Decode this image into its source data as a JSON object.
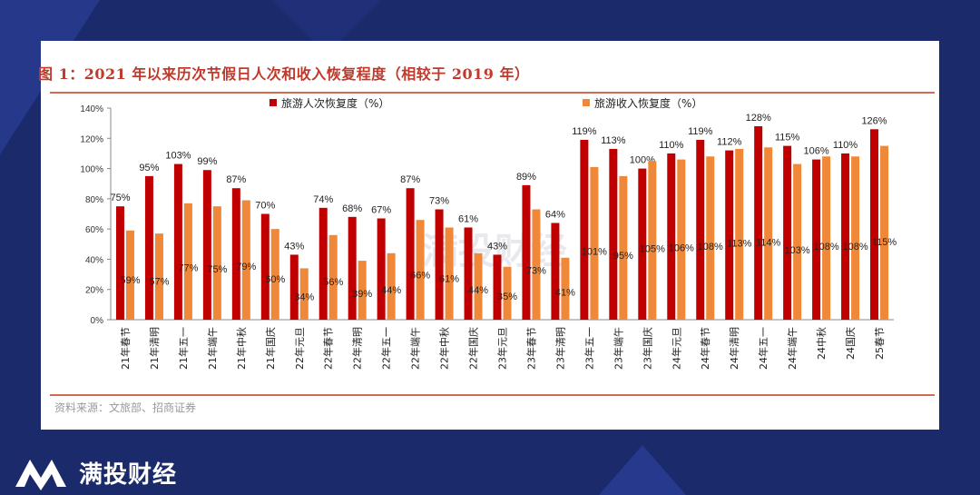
{
  "title": "图 1：2021 年以来历次节假日人次和收入恢复程度（相较于 2019 年）",
  "source": "资料来源：文旅部、招商证券",
  "brand": {
    "name": "满投财经",
    "watermark": "满投财经"
  },
  "colors": {
    "series1": "#c00000",
    "series2": "#f0883a",
    "background": "#1b2a6b",
    "accent": "#c0392b"
  },
  "chart_data": {
    "type": "bar",
    "title": "图 1：2021 年以来历次节假日人次和收入恢复程度（相较于 2019 年）",
    "xlabel": "",
    "ylabel": "",
    "ylim": [
      0,
      140
    ],
    "yticks": [
      "0%",
      "20%",
      "40%",
      "60%",
      "80%",
      "100%",
      "120%",
      "140%"
    ],
    "grid": false,
    "legend_position": "top",
    "categories": [
      "21年春节",
      "21年清明",
      "21年五一",
      "21年端午",
      "21年中秋",
      "21年国庆",
      "22年元旦",
      "22年春节",
      "22年清明",
      "22年五一",
      "22年端午",
      "22年中秋",
      "22年国庆",
      "23年元旦",
      "23年春节",
      "23年清明",
      "23年五一",
      "23年端午",
      "23年国庆",
      "24年元旦",
      "24年春节",
      "24年清明",
      "24年五一",
      "24年端午",
      "24中秋",
      "24国庆",
      "25春节"
    ],
    "series": [
      {
        "name": "旅游人次恢复度（%）",
        "color": "#c00000",
        "values": [
          75,
          95,
          103,
          99,
          87,
          70,
          43,
          74,
          68,
          67,
          87,
          73,
          61,
          43,
          89,
          64,
          119,
          113,
          100,
          110,
          119,
          112,
          128,
          115,
          106,
          110,
          126
        ],
        "labels": [
          "75%",
          "95%",
          "103%",
          "99%",
          "87%",
          "70%",
          "43%",
          "74%",
          "68%",
          "67%",
          "87%",
          "73%",
          "61%",
          "43%",
          "89%",
          "64%",
          "119%",
          "113%",
          "100%",
          "110%",
          "119%",
          "112%",
          "128%",
          "115%",
          "106%",
          "110%",
          "126%"
        ]
      },
      {
        "name": "旅游收入恢复度（%）",
        "color": "#f0883a",
        "values": [
          59,
          57,
          77,
          75,
          79,
          60,
          34,
          56,
          39,
          44,
          66,
          61,
          44,
          35,
          73,
          41,
          101,
          95,
          105,
          106,
          108,
          113,
          114,
          103,
          108,
          108,
          115
        ],
        "labels": [
          "59%",
          "57%",
          "77%",
          "75%",
          "79%",
          "60%",
          "34%",
          "56%",
          "39%",
          "44%",
          "66%",
          "61%",
          "44%",
          "35%",
          "73%",
          "41%",
          "101%",
          "95%",
          "105%",
          "106%",
          "108%",
          "113%",
          "114%",
          "103%",
          "108%",
          "108%",
          "115%"
        ]
      }
    ]
  }
}
